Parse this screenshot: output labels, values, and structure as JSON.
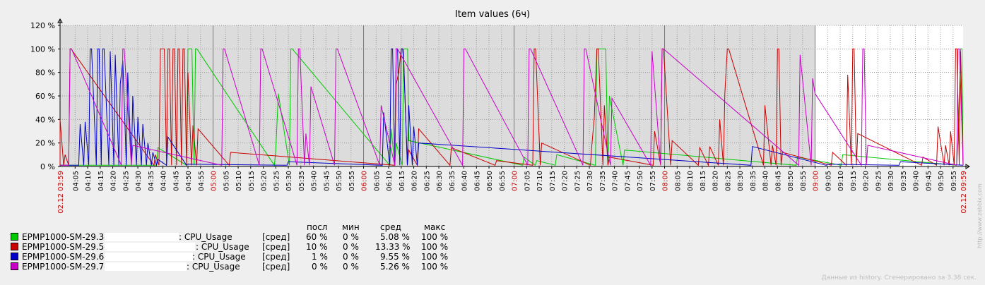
{
  "chart_data": {
    "type": "line",
    "title": "Item values (6ч)",
    "y_tick_labels": [
      "0 %",
      "20 %",
      "40 %",
      "60 %",
      "80 %",
      "100 %",
      "120 %"
    ],
    "ylim": [
      0,
      120
    ],
    "x_start_label": "02.12 03:59",
    "x_end_label": "02.12 09:59",
    "x_tick_labels": [
      "04:05",
      "04:10",
      "04:15",
      "04:20",
      "04:25",
      "04:30",
      "04:35",
      "04:40",
      "04:45",
      "04:50",
      "04:55",
      "05:00",
      "05:05",
      "05:10",
      "05:15",
      "05:20",
      "05:25",
      "05:30",
      "05:35",
      "05:40",
      "05:45",
      "05:50",
      "05:55",
      "06:00",
      "06:05",
      "06:10",
      "06:15",
      "06:20",
      "06:25",
      "06:30",
      "06:35",
      "06:40",
      "06:45",
      "06:50",
      "06:55",
      "07:00",
      "07:05",
      "07:10",
      "07:15",
      "07:20",
      "07:25",
      "07:30",
      "07:35",
      "07:40",
      "07:45",
      "07:50",
      "07:55",
      "08:00",
      "08:05",
      "08:10",
      "08:15",
      "08:20",
      "08:25",
      "08:30",
      "08:35",
      "08:40",
      "08:45",
      "08:50",
      "08:55",
      "09:00",
      "09:05",
      "09:10",
      "09:15",
      "09:20",
      "09:25",
      "09:30",
      "09:35",
      "09:40",
      "09:45",
      "09:50",
      "09:55"
    ],
    "highlight_hours": [
      "05:00",
      "06:00",
      "07:00",
      "08:00",
      "09:00"
    ],
    "shaded_until": "09:00",
    "grid": true,
    "series": [
      {
        "name": "EPMP1000-SM-29.3-",
        "color": "#00c800",
        "spikes": [
          [
            "04:50",
            100
          ],
          [
            "04:51",
            100
          ],
          [
            "04:53",
            100
          ],
          [
            "05:26",
            62
          ],
          [
            "05:31",
            100
          ],
          [
            "05:25",
            14
          ],
          [
            "06:11",
            32
          ],
          [
            "06:13",
            20
          ],
          [
            "06:16",
            100
          ],
          [
            "06:17",
            100
          ],
          [
            "06:18",
            22
          ],
          [
            "07:04",
            8
          ],
          [
            "07:09",
            5
          ],
          [
            "07:17",
            10
          ],
          [
            "07:33",
            100
          ],
          [
            "07:34",
            100
          ],
          [
            "07:35",
            100
          ],
          [
            "07:36",
            100
          ],
          [
            "07:38",
            60
          ],
          [
            "07:44",
            14
          ],
          [
            "08:53",
            8
          ],
          [
            "09:11",
            10
          ],
          [
            "09:57",
            22
          ],
          [
            "09:58",
            100
          ],
          [
            "04:38",
            16
          ]
        ]
      },
      {
        "name": "EPMP1000-SM-29.5-",
        "color": "#c80000",
        "spikes": [
          [
            "03:59",
            40
          ],
          [
            "04:01",
            10
          ],
          [
            "04:03",
            100
          ],
          [
            "04:04",
            98
          ],
          [
            "04:37",
            10
          ],
          [
            "04:39",
            100
          ],
          [
            "04:40",
            100
          ],
          [
            "04:42",
            100
          ],
          [
            "04:44",
            100
          ],
          [
            "04:46",
            100
          ],
          [
            "04:48",
            100
          ],
          [
            "04:50",
            80
          ],
          [
            "04:52",
            35
          ],
          [
            "04:54",
            32
          ],
          [
            "05:07",
            12
          ],
          [
            "06:13",
            70
          ],
          [
            "06:14",
            80
          ],
          [
            "06:15",
            100
          ],
          [
            "06:16",
            92
          ],
          [
            "06:18",
            14
          ],
          [
            "06:22",
            32
          ],
          [
            "06:35",
            16
          ],
          [
            "06:53",
            5
          ],
          [
            "07:08",
            100
          ],
          [
            "07:11",
            20
          ],
          [
            "07:31",
            18
          ],
          [
            "07:32",
            42
          ],
          [
            "07:33",
            100
          ],
          [
            "07:36",
            52
          ],
          [
            "07:38",
            8
          ],
          [
            "07:56",
            30
          ],
          [
            "07:59",
            100
          ],
          [
            "08:03",
            22
          ],
          [
            "08:14",
            16
          ],
          [
            "08:18",
            17
          ],
          [
            "08:22",
            40
          ],
          [
            "08:24",
            62
          ],
          [
            "08:25",
            100
          ],
          [
            "08:40",
            52
          ],
          [
            "08:43",
            18
          ],
          [
            "08:45",
            100
          ],
          [
            "08:47",
            12
          ],
          [
            "09:07",
            12
          ],
          [
            "09:13",
            78
          ],
          [
            "09:15",
            100
          ],
          [
            "09:17",
            28
          ],
          [
            "09:43",
            8
          ],
          [
            "09:49",
            34
          ],
          [
            "09:52",
            18
          ],
          [
            "09:54",
            30
          ],
          [
            "09:56",
            100
          ],
          [
            "09:58",
            98
          ]
        ]
      },
      {
        "name": "EPMP1000-SM-29.6-",
        "color": "#0000c8",
        "spikes": [
          [
            "04:07",
            36
          ],
          [
            "04:09",
            38
          ],
          [
            "04:11",
            100
          ],
          [
            "04:14",
            100
          ],
          [
            "04:16",
            100
          ],
          [
            "04:19",
            98
          ],
          [
            "04:21",
            95
          ],
          [
            "04:23",
            70
          ],
          [
            "04:24",
            90
          ],
          [
            "04:26",
            80
          ],
          [
            "04:28",
            60
          ],
          [
            "04:30",
            42
          ],
          [
            "04:32",
            36
          ],
          [
            "04:34",
            20
          ],
          [
            "04:36",
            12
          ],
          [
            "04:38",
            6
          ],
          [
            "04:42",
            25
          ],
          [
            "04:50",
            2
          ],
          [
            "05:30",
            4
          ],
          [
            "06:08",
            46
          ],
          [
            "06:11",
            100
          ],
          [
            "06:13",
            100
          ],
          [
            "06:15",
            100
          ],
          [
            "06:16",
            90
          ],
          [
            "06:18",
            52
          ],
          [
            "06:20",
            34
          ],
          [
            "06:22",
            20
          ],
          [
            "08:35",
            17
          ],
          [
            "09:05",
            2
          ],
          [
            "09:34",
            4
          ]
        ]
      },
      {
        "name": "EPMP1000-SM-29.7-",
        "color": "#c800c8",
        "spikes": [
          [
            "04:03",
            100
          ],
          [
            "04:24",
            100
          ],
          [
            "04:28",
            18
          ],
          [
            "05:04",
            100
          ],
          [
            "05:19",
            100
          ],
          [
            "05:34",
            100
          ],
          [
            "05:37",
            28
          ],
          [
            "05:39",
            68
          ],
          [
            "05:49",
            100
          ],
          [
            "06:07",
            52
          ],
          [
            "06:13",
            100
          ],
          [
            "06:40",
            100
          ],
          [
            "07:06",
            100
          ],
          [
            "07:28",
            100
          ],
          [
            "07:39",
            58
          ],
          [
            "07:59",
            100
          ],
          [
            "07:55",
            98
          ],
          [
            "08:54",
            95
          ],
          [
            "08:59",
            75
          ],
          [
            "09:00",
            62
          ],
          [
            "09:19",
            100
          ],
          [
            "09:21",
            18
          ],
          [
            "09:57",
            100
          ]
        ]
      }
    ]
  },
  "legend": {
    "headers": {
      "last": "посл",
      "min": "мин",
      "avg": "сред",
      "max": "макс"
    },
    "items": [
      {
        "name": "EPMP1000-SM-29.3-",
        "item": ": CPU_Usage",
        "func": "[сред]",
        "last": "60 %",
        "min": "0 %",
        "avg": "5.08 %",
        "max": "100 %",
        "color": "#00c800"
      },
      {
        "name": "EPMP1000-SM-29.5-",
        "item": ": CPU_Usage",
        "func": "[сред]",
        "last": "10 %",
        "min": "0 %",
        "avg": "13.33 %",
        "max": "100 %",
        "color": "#c80000"
      },
      {
        "name": "EPMP1000-SM-29.6-",
        "item": ": CPU_Usage",
        "func": "[сред]",
        "last": "1 %",
        "min": "0 %",
        "avg": "9.55 %",
        "max": "100 %",
        "color": "#0000c8"
      },
      {
        "name": "EPMP1000-SM-29.7-",
        "item": ": CPU_Usage",
        "func": "[сред]",
        "last": "0 %",
        "min": "0 %",
        "avg": "5.26 %",
        "max": "100 %",
        "color": "#c800c8"
      }
    ]
  },
  "footer": "Данные из history. Сгенерировано за 3.38 сек.",
  "watermark": "http://www.zabbix.com"
}
